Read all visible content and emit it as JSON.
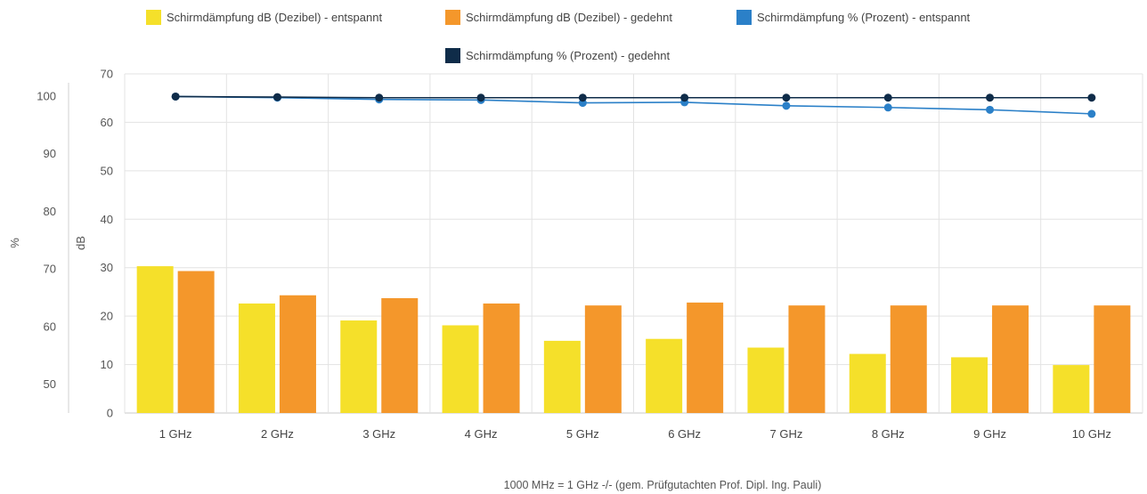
{
  "chart_data": {
    "type": "bar",
    "categories": [
      "1 GHz",
      "2 GHz",
      "3 GHz",
      "4 GHz",
      "5 GHz",
      "6 GHz",
      "7 GHz",
      "8 GHz",
      "9 GHz",
      "10 GHz"
    ],
    "series": [
      {
        "name": "Schirmdämpfung dB (Dezibel) - entspannt",
        "type": "bar",
        "axis": "dB",
        "color": "#f5e02a",
        "values": [
          30.3,
          22.6,
          19.1,
          18.1,
          14.9,
          15.3,
          13.5,
          12.2,
          11.5,
          9.9
        ]
      },
      {
        "name": "Schirmdämpfung dB (Dezibel) - gedehnt",
        "type": "bar",
        "axis": "dB",
        "color": "#f4972b",
        "values": [
          29.3,
          24.3,
          23.7,
          22.6,
          22.2,
          22.8,
          22.2,
          22.2,
          22.2,
          22.2
        ]
      },
      {
        "name": "Schirmdämpfung % (Prozent) - entspannt",
        "type": "line",
        "axis": "%",
        "color": "#2b80c8",
        "values": [
          99.9,
          99.7,
          99.4,
          99.3,
          98.8,
          98.9,
          98.3,
          98.0,
          97.6,
          96.9
        ]
      },
      {
        "name": "Schirmdämpfung % (Prozent) - gedehnt",
        "type": "line",
        "axis": "%",
        "color": "#0f2c49",
        "values": [
          99.9,
          99.8,
          99.7,
          99.7,
          99.7,
          99.7,
          99.7,
          99.7,
          99.7,
          99.7
        ]
      }
    ],
    "y_left": {
      "label": "%",
      "ticks": [
        "100",
        "90",
        "80",
        "70",
        "60",
        "50"
      ],
      "range": [
        45,
        103.83
      ]
    },
    "y_right": {
      "label": "dB",
      "ticks": [
        "0",
        "10",
        "20",
        "30",
        "40",
        "50",
        "60",
        "70"
      ],
      "range": [
        0,
        70
      ]
    },
    "note": "1000 MHz = 1 GHz -/- (gem. Prüfgutachten Prof. Dipl. Ing. Pauli)",
    "grid": true,
    "legend_position": "top"
  }
}
